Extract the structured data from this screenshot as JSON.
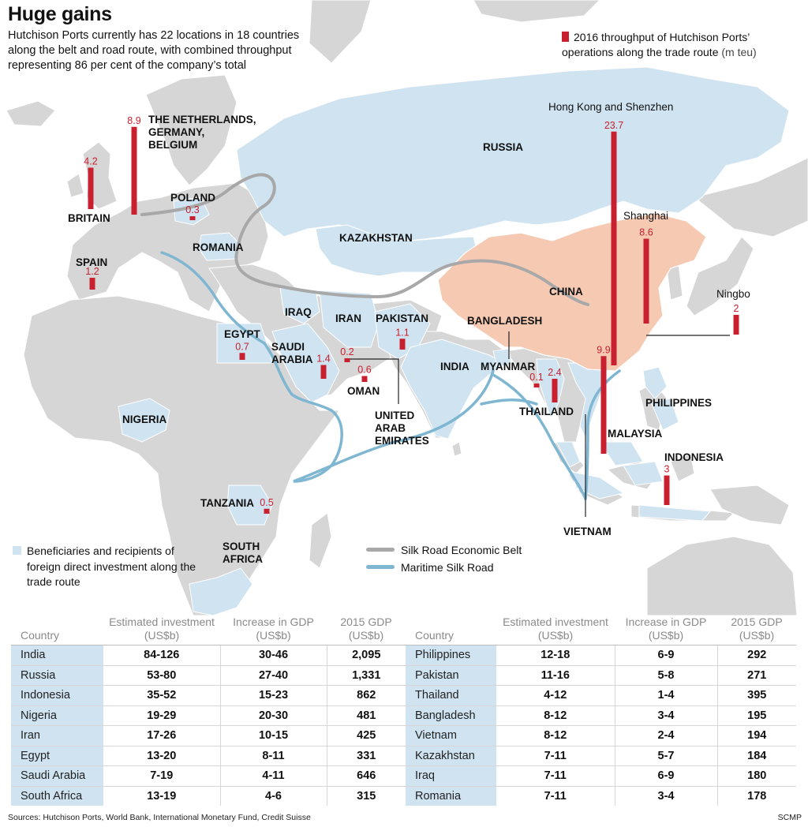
{
  "header": {
    "title": "Huge gains",
    "subtitle": "Hutchison Ports currently has 22 locations in 18 countries along the belt and road route, with combined throughput representing 86 per cent of the company’s total"
  },
  "legend": {
    "throughput_label": "2016 throughput of Hutchison Ports’ operations along the trade route",
    "throughput_unit": "(m teu)",
    "fdi_label": "Beneficiaries and recipients of foreign direct investment along the trade route",
    "belt_label": "Silk Road Economic Belt",
    "maritime_label": "Maritime Silk Road"
  },
  "colors": {
    "bar": "#c8202e",
    "land": "#d6d6d6",
    "fdi_land": "#cfe3f1",
    "china": "#f6c9b3",
    "belt_line": "#a8a8a8",
    "maritime_line": "#7fb6d1"
  },
  "country_labels": [
    "RUSSIA",
    "KAZAKHSTAN",
    "CHINA",
    "ROMANIA",
    "POLAND",
    "BRITAIN",
    "SPAIN",
    "IRAQ",
    "IRAN",
    "PAKISTAN",
    "BANGLADESH",
    "INDIA",
    "MYANMAR",
    "THAILAND",
    "MALAYSIA",
    "PHILIPPINES",
    "INDONESIA",
    "VIETNAM",
    "EGYPT",
    "SAUDI ARABIA",
    "OMAN",
    "UNITED ARAB EMIRATES",
    "NIGERIA",
    "TANZANIA",
    "SOUTH AFRICA",
    "THE NETHERLANDS, GERMANY, BELGIUM"
  ],
  "chart_data": {
    "type": "bar",
    "title": "2016 throughput of Hutchison Ports’ operations along the trade route (m teu)",
    "series": [
      {
        "values": [
          23.7,
          9.9,
          8.9,
          8.6,
          4.2,
          3,
          2.4,
          2,
          1.4,
          1.2,
          1.1,
          0.7,
          0.6,
          0.5,
          0.3,
          0.2,
          0.1
        ]
      }
    ],
    "categories": [
      "Hong Kong and Shenzhen",
      "Malaysia",
      "The Netherlands, Germany, Belgium",
      "Shanghai",
      "Britain",
      "Indonesia",
      "Thailand",
      "Ningbo",
      "Saudi Arabia",
      "Spain",
      "Pakistan",
      "Egypt",
      "Oman",
      "Tanzania",
      "Poland",
      "United Arab Emirates",
      "Myanmar"
    ]
  },
  "table": {
    "headers": [
      "Country",
      "Estimated investment (US$b)",
      "Increase in GDP (US$b)",
      "2015 GDP (US$b)"
    ],
    "left": [
      [
        "India",
        "84-126",
        "30-46",
        "2,095"
      ],
      [
        "Russia",
        "53-80",
        "27-40",
        "1,331"
      ],
      [
        "Indonesia",
        "35-52",
        "15-23",
        "862"
      ],
      [
        "Nigeria",
        "19-29",
        "20-30",
        "481"
      ],
      [
        "Iran",
        "17-26",
        "10-15",
        "425"
      ],
      [
        "Egypt",
        "13-20",
        "8-11",
        "331"
      ],
      [
        "Saudi Arabia",
        "7-19",
        "4-11",
        "646"
      ],
      [
        "South Africa",
        "13-19",
        "4-6",
        "315"
      ]
    ],
    "right": [
      [
        "Philippines",
        "12-18",
        "6-9",
        "292"
      ],
      [
        "Pakistan",
        "11-16",
        "5-8",
        "271"
      ],
      [
        "Thailand",
        "4-12",
        "1-4",
        "395"
      ],
      [
        "Bangladesh",
        "8-12",
        "3-4",
        "195"
      ],
      [
        "Vietnam",
        "8-12",
        "2-4",
        "194"
      ],
      [
        "Kazakhstan",
        "7-11",
        "5-7",
        "184"
      ],
      [
        "Iraq",
        "7-11",
        "6-9",
        "180"
      ],
      [
        "Romania",
        "7-11",
        "3-4",
        "178"
      ]
    ]
  },
  "footer": {
    "sources": "Sources: Hutchison Ports, World Bank, International Monetary Fund, Credit Suisse",
    "credit": "SCMP"
  }
}
